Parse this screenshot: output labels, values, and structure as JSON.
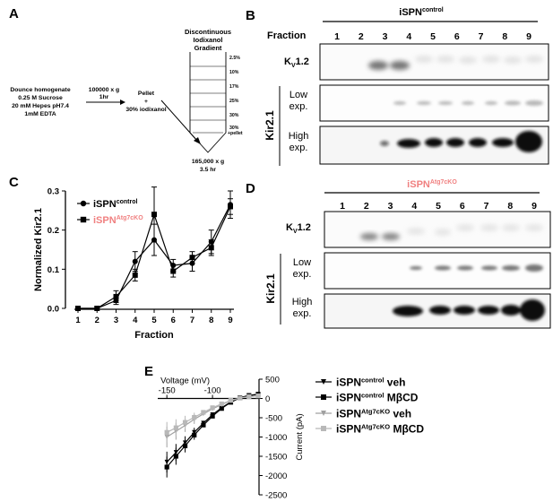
{
  "panels": {
    "a": {
      "letter": "A",
      "gradient_title": [
        "Discontinuous",
        "Iodixanol",
        "Gradient"
      ],
      "gradient_layers": [
        "2.5%",
        "10%",
        "17%",
        "25%",
        "30%",
        "30%",
        "+pellet"
      ],
      "homogenate": [
        "Dounce homogenate",
        "0.25 M Sucrose",
        "20 mM Hepes pH7.4",
        "1mM EDTA"
      ],
      "spin1": [
        "100000 x g",
        "1hr"
      ],
      "pellet": [
        "Pellet",
        "+",
        "30% iodixanol"
      ],
      "spin2": [
        "165,000 x g",
        "3.5 hr"
      ]
    },
    "b": {
      "letter": "B",
      "condition": "iSPN",
      "condition_sup": "control",
      "fraction_label": "Fraction",
      "fractions": [
        "1",
        "2",
        "3",
        "4",
        "5",
        "6",
        "7",
        "8",
        "9"
      ],
      "kv_label": "K",
      "kv_sub": "V",
      "kv_suffix": "1.2",
      "kir_label": "Kir2.1",
      "low_exp": [
        "Low",
        "exp."
      ],
      "high_exp": [
        "High",
        "exp."
      ]
    },
    "d": {
      "letter": "D",
      "condition": "iSPN",
      "condition_sup": "Atg7cKO",
      "fractions": [
        "1",
        "2",
        "3",
        "4",
        "5",
        "6",
        "7",
        "8",
        "9"
      ],
      "kv_label": "K",
      "kv_sub": "V",
      "kv_suffix": "1.2",
      "kir_label": "Kir2.1",
      "low_exp": [
        "Low",
        "exp."
      ],
      "high_exp": [
        "High",
        "exp."
      ]
    },
    "c": {
      "letter": "C"
    },
    "e": {
      "letter": "E"
    }
  },
  "colors": {
    "ko_accent": "#f08080",
    "series_black": "#000000",
    "series_gray": "#a0a0a0",
    "series_lightgray": "#b8b8b8"
  },
  "chart_data": [
    {
      "panel": "C",
      "type": "line",
      "xlabel": "Fraction",
      "ylabel": "Normalized Kir2.1",
      "x": [
        1,
        2,
        3,
        4,
        5,
        6,
        7,
        8,
        9
      ],
      "xlim": [
        1,
        9
      ],
      "ylim": [
        0,
        0.3
      ],
      "yticks": [
        "0.0",
        "0.1",
        "0.2",
        "0.3"
      ],
      "legend": "top-left",
      "series": [
        {
          "name": "iSPN",
          "name_sup": "control",
          "marker": "circle",
          "values": [
            0,
            0,
            0.02,
            0.12,
            0.175,
            0.11,
            0.115,
            0.17,
            0.265
          ],
          "errors": [
            0,
            0,
            0.01,
            0.025,
            0.04,
            0.015,
            0.02,
            0.03,
            0.035
          ]
        },
        {
          "name": "iSPN",
          "name_sup": "Atg7cKO",
          "marker": "square",
          "values": [
            0,
            0,
            0.03,
            0.085,
            0.24,
            0.095,
            0.13,
            0.155,
            0.26
          ],
          "errors": [
            0,
            0,
            0.015,
            0.015,
            0.07,
            0.015,
            0.015,
            0.02,
            0.02
          ]
        }
      ]
    },
    {
      "panel": "E",
      "type": "line",
      "xlabel": "Voltage (mV)",
      "ylabel": "Current (pA)",
      "xlim": [
        -150,
        -50
      ],
      "ylim": [
        -2500,
        500
      ],
      "xticks": [
        "-150",
        "-100"
      ],
      "yticks": [
        "500",
        "0",
        "-500",
        "-1000",
        "-1500",
        "-2000",
        "-2500"
      ],
      "legend": "right",
      "x": [
        -150,
        -140,
        -130,
        -120,
        -110,
        -100,
        -90,
        -80,
        -70,
        -60,
        -50
      ],
      "series": [
        {
          "name": "iSPN",
          "name_sup": "control",
          "suffix": "veh",
          "marker": "triangle",
          "color": "#000000",
          "values": [
            -1650,
            -1400,
            -1150,
            -880,
            -640,
            -420,
            -240,
            -90,
            20,
            80,
            110
          ]
        },
        {
          "name": "iSPN",
          "name_sup": "control",
          "suffix": "MβCD",
          "marker": "square",
          "color": "#000000",
          "values": [
            -1780,
            -1500,
            -1230,
            -950,
            -690,
            -460,
            -260,
            -100,
            15,
            75,
            105
          ]
        },
        {
          "name": "iSPN",
          "name_sup": "Atg7cKO",
          "suffix": "veh",
          "marker": "triangle",
          "color": "#a0a0a0",
          "values": [
            -1000,
            -850,
            -700,
            -540,
            -400,
            -270,
            -160,
            -60,
            10,
            50,
            70
          ]
        },
        {
          "name": "iSPN",
          "name_sup": "Atg7cKO",
          "suffix": "MβCD",
          "marker": "square",
          "color": "#b8b8b8",
          "values": [
            -880,
            -760,
            -620,
            -490,
            -360,
            -240,
            -140,
            -50,
            10,
            45,
            65
          ]
        }
      ]
    }
  ]
}
